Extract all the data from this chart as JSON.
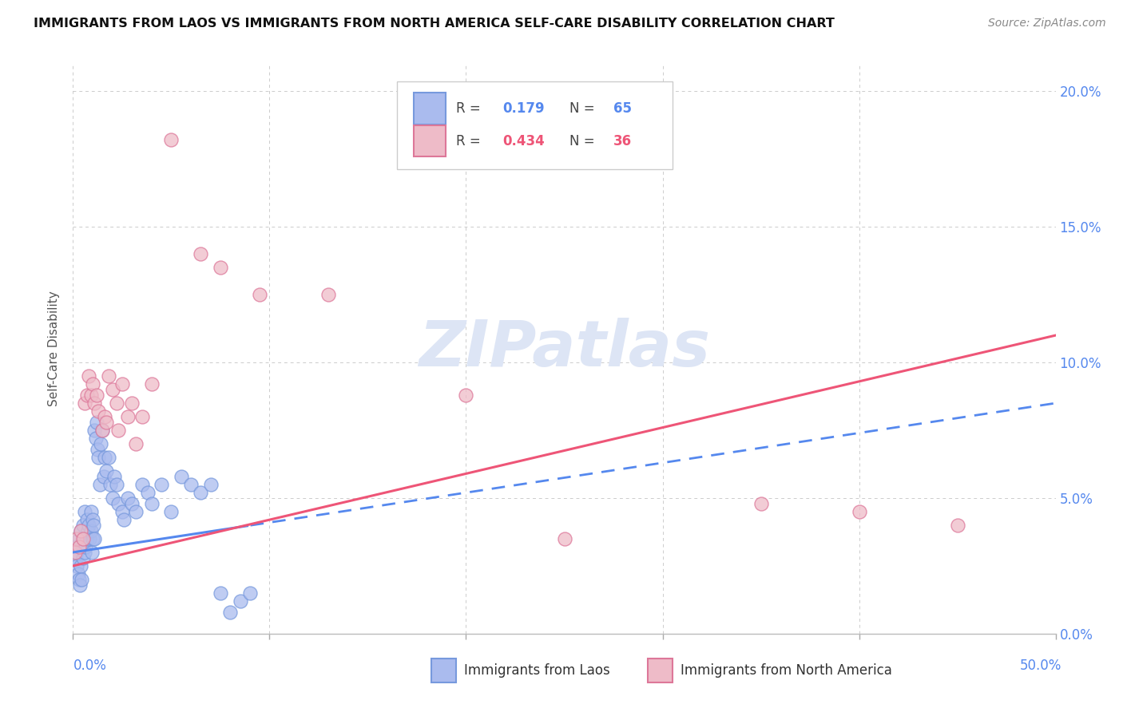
{
  "title": "IMMIGRANTS FROM LAOS VS IMMIGRANTS FROM NORTH AMERICA SELF-CARE DISABILITY CORRELATION CHART",
  "source": "Source: ZipAtlas.com",
  "ylabel": "Self-Care Disability",
  "legend_blue_r": "0.179",
  "legend_blue_n": "65",
  "legend_pink_r": "0.434",
  "legend_pink_n": "36",
  "legend_label_blue": "Immigrants from Laos",
  "legend_label_pink": "Immigrants from North America",
  "xlim": [
    0.0,
    50.0
  ],
  "ylim": [
    0.0,
    21.0
  ],
  "yticks": [
    0,
    5,
    10,
    15,
    20
  ],
  "xticks": [
    0,
    10,
    20,
    30,
    40,
    50
  ],
  "blue_scatter_x": [
    0.1,
    0.15,
    0.2,
    0.2,
    0.25,
    0.3,
    0.3,
    0.35,
    0.4,
    0.4,
    0.45,
    0.5,
    0.5,
    0.5,
    0.55,
    0.6,
    0.6,
    0.65,
    0.7,
    0.7,
    0.75,
    0.8,
    0.85,
    0.9,
    0.9,
    0.95,
    1.0,
    1.0,
    1.05,
    1.1,
    1.1,
    1.15,
    1.2,
    1.25,
    1.3,
    1.35,
    1.4,
    1.5,
    1.55,
    1.6,
    1.7,
    1.8,
    1.9,
    2.0,
    2.1,
    2.2,
    2.3,
    2.5,
    2.6,
    2.8,
    3.0,
    3.2,
    3.5,
    3.8,
    4.0,
    4.5,
    5.0,
    5.5,
    6.0,
    6.5,
    7.0,
    7.5,
    8.0,
    8.5,
    9.0
  ],
  "blue_scatter_y": [
    3.2,
    2.8,
    2.5,
    3.0,
    2.2,
    3.5,
    2.0,
    1.8,
    3.8,
    2.5,
    2.0,
    4.0,
    3.2,
    2.8,
    3.5,
    4.5,
    3.0,
    3.2,
    4.2,
    3.5,
    3.8,
    4.0,
    3.5,
    4.5,
    3.8,
    3.0,
    4.2,
    3.5,
    4.0,
    7.5,
    3.5,
    7.2,
    7.8,
    6.8,
    6.5,
    5.5,
    7.0,
    7.5,
    5.8,
    6.5,
    6.0,
    6.5,
    5.5,
    5.0,
    5.8,
    5.5,
    4.8,
    4.5,
    4.2,
    5.0,
    4.8,
    4.5,
    5.5,
    5.2,
    4.8,
    5.5,
    4.5,
    5.8,
    5.5,
    5.2,
    5.5,
    1.5,
    0.8,
    1.2,
    1.5
  ],
  "pink_scatter_x": [
    0.1,
    0.2,
    0.3,
    0.4,
    0.5,
    0.6,
    0.7,
    0.8,
    0.9,
    1.0,
    1.1,
    1.2,
    1.3,
    1.5,
    1.6,
    1.7,
    1.8,
    2.0,
    2.2,
    2.3,
    2.5,
    2.8,
    3.0,
    3.2,
    3.5,
    4.0,
    5.0,
    6.5,
    7.5,
    9.5,
    13.0,
    20.0,
    25.0,
    35.0,
    40.0,
    45.0
  ],
  "pink_scatter_y": [
    3.0,
    3.5,
    3.2,
    3.8,
    3.5,
    8.5,
    8.8,
    9.5,
    8.8,
    9.2,
    8.5,
    8.8,
    8.2,
    7.5,
    8.0,
    7.8,
    9.5,
    9.0,
    8.5,
    7.5,
    9.2,
    8.0,
    8.5,
    7.0,
    8.0,
    9.2,
    18.2,
    14.0,
    13.5,
    12.5,
    12.5,
    8.8,
    3.5,
    4.8,
    4.5,
    4.0
  ],
  "blue_line_color": "#5588ee",
  "pink_line_color": "#ee5577",
  "blue_dot_facecolor": "#aabbee",
  "blue_dot_edgecolor": "#7799dd",
  "pink_dot_facecolor": "#eebbc8",
  "pink_dot_edgecolor": "#dd7799",
  "grid_color": "#cccccc",
  "background_color": "#ffffff",
  "watermark_text": "ZIPatlas",
  "watermark_color": "#dde5f5",
  "blue_solid_end_x": 9.0,
  "blue_line_intercept": 3.0,
  "blue_line_slope": 0.11,
  "pink_line_intercept": 2.5,
  "pink_line_slope": 0.17
}
